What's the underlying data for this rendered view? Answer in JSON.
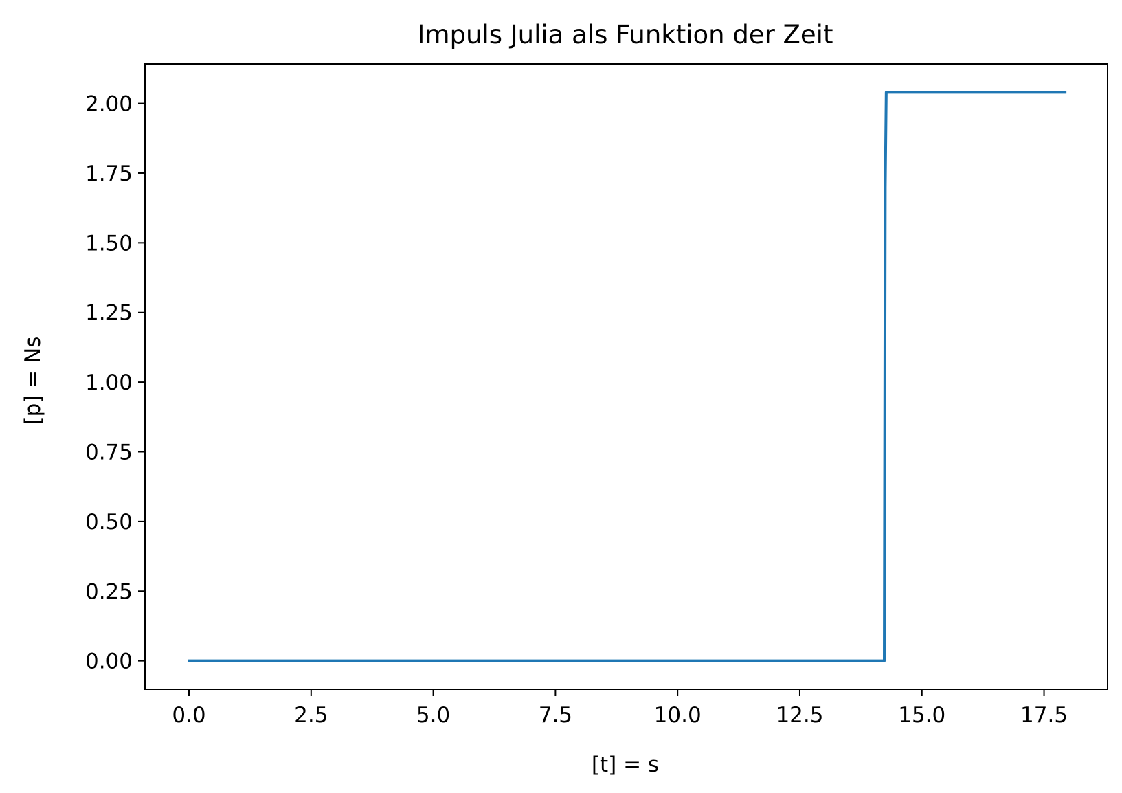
{
  "chart_data": {
    "type": "line",
    "title": "Impuls Julia als Funktion der Zeit",
    "xlabel": "[t] = s",
    "ylabel": "[p] = Ns",
    "xlim": [
      -0.9,
      18.8
    ],
    "ylim": [
      -0.102,
      2.142
    ],
    "xticks": [
      0.0,
      2.5,
      5.0,
      7.5,
      10.0,
      12.5,
      15.0,
      17.5
    ],
    "xtick_labels": [
      "0.0",
      "2.5",
      "5.0",
      "7.5",
      "10.0",
      "12.5",
      "15.0",
      "17.5"
    ],
    "yticks": [
      0.0,
      0.25,
      0.5,
      0.75,
      1.0,
      1.25,
      1.5,
      1.75,
      2.0
    ],
    "ytick_labels": [
      "0.00",
      "0.25",
      "0.50",
      "0.75",
      "1.00",
      "1.25",
      "1.50",
      "1.75",
      "2.00"
    ],
    "grid": false,
    "legend": "none",
    "series": [
      {
        "color": "#1f77b4",
        "x": [
          0.0,
          14.23,
          14.25,
          14.27,
          14.3,
          17.93
        ],
        "y": [
          0.0,
          0.0,
          1.7,
          2.04,
          2.04,
          2.04
        ]
      }
    ]
  }
}
